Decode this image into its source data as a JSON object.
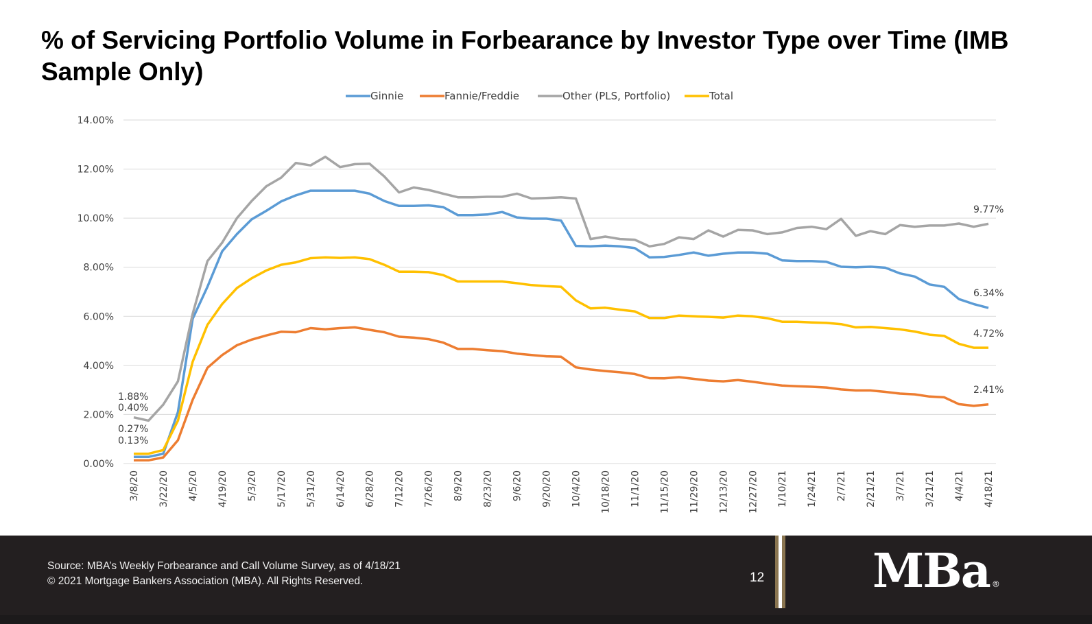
{
  "chart_data": {
    "type": "line",
    "title": "% of Servicing Portfolio Volume in Forbearance by Investor Type over Time (IMB Sample Only)",
    "xlabel": "",
    "ylabel": "",
    "ylim": [
      0,
      14
    ],
    "yticks": [
      "0.00%",
      "2.00%",
      "4.00%",
      "6.00%",
      "8.00%",
      "10.00%",
      "12.00%",
      "14.00%"
    ],
    "grid": true,
    "legend_position": "top",
    "x": [
      "3/8/20",
      "3/15/20",
      "3/22/20",
      "3/29/20",
      "4/5/20",
      "4/12/20",
      "4/19/20",
      "4/26/20",
      "5/3/20",
      "5/10/20",
      "5/17/20",
      "5/24/20",
      "5/31/20",
      "6/7/20",
      "6/14/20",
      "6/21/20",
      "6/28/20",
      "7/5/20",
      "7/12/20",
      "7/19/20",
      "7/26/20",
      "8/2/20",
      "8/9/20",
      "8/16/20",
      "8/23/20",
      "8/30/20",
      "9/6/20",
      "9/13/20",
      "9/20/20",
      "9/27/20",
      "10/4/20",
      "10/11/20",
      "10/18/20",
      "10/25/20",
      "11/1/20",
      "11/8/20",
      "11/15/20",
      "11/22/20",
      "11/29/20",
      "12/6/20",
      "12/13/20",
      "12/20/20",
      "12/27/20",
      "1/3/21",
      "1/10/21",
      "1/17/21",
      "1/24/21",
      "1/31/21",
      "2/7/21",
      "2/14/21",
      "2/21/21",
      "2/28/21",
      "3/7/21",
      "3/14/21",
      "3/21/21",
      "3/28/21",
      "4/4/21",
      "4/11/21",
      "4/18/21"
    ],
    "xtick_labels": [
      "3/8/20",
      "3/22/20",
      "4/5/20",
      "4/19/20",
      "5/3/20",
      "5/17/20",
      "5/31/20",
      "6/14/20",
      "6/28/20",
      "7/12/20",
      "7/26/20",
      "8/9/20",
      "8/23/20",
      "9/6/20",
      "9/20/20",
      "10/4/20",
      "10/18/20",
      "11/1/20",
      "11/15/20",
      "11/29/20",
      "12/13/20",
      "12/27/20",
      "1/10/21",
      "1/24/21",
      "2/7/21",
      "2/21/21",
      "3/7/21",
      "3/21/21",
      "4/4/21",
      "4/18/21"
    ],
    "series": [
      {
        "name": "Ginnie",
        "color": "#5b9bd5",
        "values": [
          0.27,
          0.27,
          0.4,
          2.1,
          5.9,
          7.2,
          8.65,
          9.35,
          9.95,
          10.3,
          10.68,
          10.93,
          11.12,
          11.12,
          11.12,
          11.12,
          11.0,
          10.7,
          10.5,
          10.5,
          10.52,
          10.45,
          10.12,
          10.12,
          10.15,
          10.25,
          10.03,
          9.98,
          9.98,
          9.9,
          8.87,
          8.85,
          8.88,
          8.85,
          8.78,
          8.4,
          8.42,
          8.5,
          8.6,
          8.47,
          8.55,
          8.6,
          8.6,
          8.55,
          8.28,
          8.25,
          8.25,
          8.22,
          8.02,
          8.0,
          8.02,
          7.98,
          7.75,
          7.62,
          7.3,
          7.2,
          6.7,
          6.5,
          6.34
        ]
      },
      {
        "name": "Fannie/Freddie",
        "color": "#ed7d31",
        "values": [
          0.13,
          0.13,
          0.25,
          0.95,
          2.6,
          3.9,
          4.42,
          4.82,
          5.05,
          5.22,
          5.37,
          5.35,
          5.52,
          5.47,
          5.52,
          5.55,
          5.45,
          5.35,
          5.17,
          5.13,
          5.07,
          4.93,
          4.67,
          4.67,
          4.62,
          4.58,
          4.48,
          4.42,
          4.37,
          4.35,
          3.92,
          3.83,
          3.77,
          3.72,
          3.65,
          3.48,
          3.47,
          3.52,
          3.45,
          3.38,
          3.35,
          3.4,
          3.33,
          3.25,
          3.18,
          3.15,
          3.13,
          3.1,
          3.02,
          2.98,
          2.98,
          2.92,
          2.85,
          2.82,
          2.73,
          2.7,
          2.42,
          2.35,
          2.41
        ]
      },
      {
        "name": "Other (PLS, Portfolio)",
        "color": "#a5a5a5",
        "values": [
          1.88,
          1.75,
          2.4,
          3.35,
          6.1,
          8.25,
          9.0,
          10.0,
          10.7,
          11.3,
          11.65,
          12.25,
          12.15,
          12.5,
          12.08,
          12.2,
          12.22,
          11.7,
          11.05,
          11.25,
          11.15,
          11.0,
          10.85,
          10.85,
          10.87,
          10.87,
          11.0,
          10.8,
          10.82,
          10.85,
          10.8,
          9.15,
          9.25,
          9.15,
          9.12,
          8.85,
          8.95,
          9.22,
          9.15,
          9.5,
          9.25,
          9.52,
          9.5,
          9.35,
          9.42,
          9.6,
          9.65,
          9.55,
          9.97,
          9.28,
          9.47,
          9.35,
          9.72,
          9.65,
          9.7,
          9.7,
          9.78,
          9.65,
          9.77
        ]
      },
      {
        "name": "Total",
        "color": "#ffc000",
        "values": [
          0.4,
          0.4,
          0.55,
          1.75,
          4.15,
          5.65,
          6.5,
          7.15,
          7.55,
          7.87,
          8.1,
          8.2,
          8.37,
          8.4,
          8.38,
          8.4,
          8.33,
          8.1,
          7.82,
          7.82,
          7.8,
          7.68,
          7.42,
          7.42,
          7.42,
          7.42,
          7.35,
          7.27,
          7.23,
          7.2,
          6.65,
          6.32,
          6.35,
          6.27,
          6.2,
          5.93,
          5.93,
          6.03,
          6.0,
          5.98,
          5.95,
          6.03,
          6.0,
          5.92,
          5.78,
          5.78,
          5.75,
          5.73,
          5.68,
          5.55,
          5.57,
          5.52,
          5.47,
          5.38,
          5.25,
          5.2,
          4.88,
          4.72,
          4.72
        ]
      }
    ],
    "annotations": {
      "start": [
        "1.88%",
        "0.40%",
        "0.27%",
        "0.13%"
      ],
      "end": [
        "9.77%",
        "6.34%",
        "4.72%",
        "2.41%"
      ]
    }
  },
  "footer": {
    "source": "Source: MBA’s Weekly Forbearance and Call Volume Survey, as of 4/18/21",
    "copyright": "© 2021 Mortgage Bankers Association (MBA). All Rights Reserved.",
    "page_number": "12",
    "logo_text": "MBa",
    "logo_mark": "®",
    "gold_color": "#8a7550",
    "background_color": "#231f20"
  }
}
